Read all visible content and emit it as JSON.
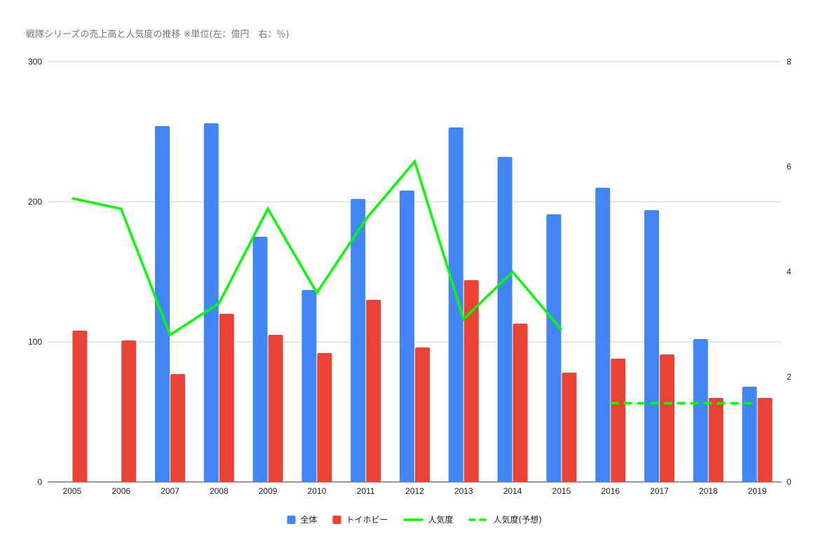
{
  "chart_data": {
    "type": "bar",
    "title": "戦隊シリーズの売上高と人気度の推移 ※単位(左：億円　右：％)",
    "categories": [
      "2005",
      "2006",
      "2007",
      "2008",
      "2009",
      "2010",
      "2011",
      "2012",
      "2013",
      "2014",
      "2015",
      "2016",
      "2017",
      "2018",
      "2019"
    ],
    "y_left": {
      "ticks": [
        "0",
        "100",
        "200",
        "300"
      ],
      "ylim": [
        0,
        300
      ]
    },
    "y_right": {
      "ticks": [
        "0",
        "2",
        "4",
        "6",
        "8"
      ],
      "ylim": [
        0,
        8
      ]
    },
    "grid": true,
    "legend_position": "bottom",
    "series": [
      {
        "name": "全体",
        "type": "bar",
        "axis": "left",
        "color": "#4285f4",
        "values": [
          null,
          null,
          254,
          256,
          175,
          137,
          202,
          208,
          253,
          232,
          191,
          210,
          194,
          102,
          68
        ]
      },
      {
        "name": "トイホビー",
        "type": "bar",
        "axis": "left",
        "color": "#ea4335",
        "values": [
          108,
          101,
          77,
          120,
          105,
          92,
          130,
          96,
          144,
          113,
          78,
          88,
          91,
          60,
          60
        ]
      },
      {
        "name": "人気度",
        "type": "line",
        "axis": "right",
        "color": "#00ff00",
        "dash": "solid",
        "values": [
          5.4,
          5.2,
          2.8,
          3.4,
          5.2,
          3.6,
          5.0,
          6.1,
          3.1,
          4.0,
          2.9,
          null,
          null,
          null,
          null
        ]
      },
      {
        "name": "人気度(予想)",
        "type": "line",
        "axis": "right",
        "color": "#00ff00",
        "dash": "dashed",
        "values": [
          null,
          null,
          null,
          null,
          null,
          null,
          null,
          null,
          null,
          null,
          null,
          1.5,
          1.5,
          1.5,
          1.5
        ]
      }
    ]
  }
}
